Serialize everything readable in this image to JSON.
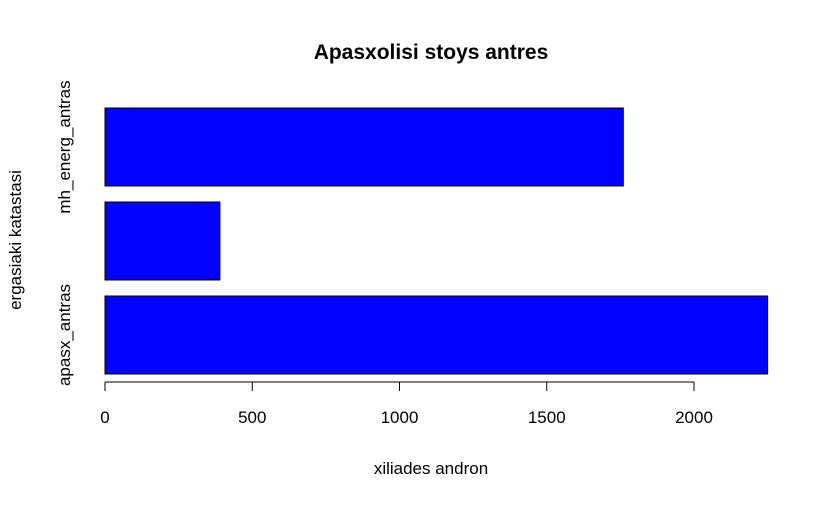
{
  "chart_data": {
    "type": "bar",
    "orientation": "horizontal",
    "title": "Apasxolisi stoys antres",
    "xlabel": "xiliades andron",
    "ylabel": "ergasiaki katastasi",
    "categories": [
      "apasx_antras",
      "",
      "mh_energ_antras"
    ],
    "values": [
      2250,
      390,
      1760
    ],
    "xlim": [
      0,
      2250
    ],
    "xticks": [
      0,
      500,
      1000,
      1500,
      2000
    ],
    "grid": false,
    "legend": "none",
    "bar_color": "#0000ff",
    "bar_border_color": "#000000"
  }
}
